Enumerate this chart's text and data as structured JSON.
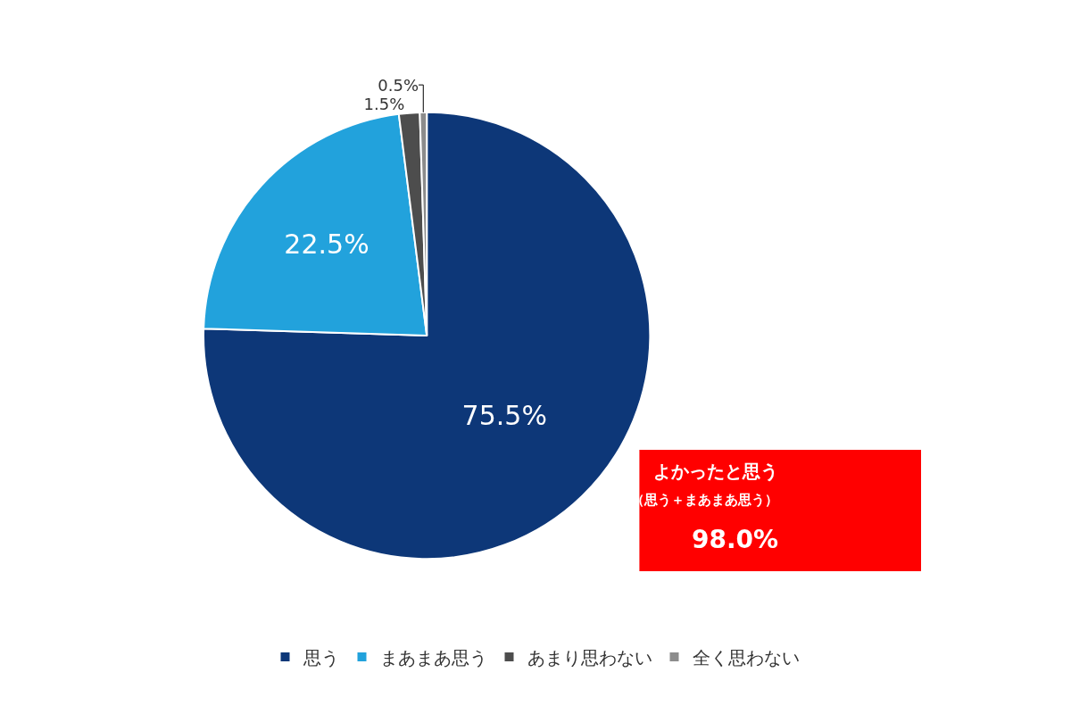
{
  "chart_data": {
    "type": "pie",
    "categories": [
      "思う",
      "まあまあ思う",
      "あまり思わない",
      "全く思わない"
    ],
    "values": [
      75.5,
      22.5,
      1.5,
      0.5
    ],
    "value_labels": [
      "75.5%",
      "22.5%",
      "1.5%",
      "0.5%"
    ],
    "colors": [
      "#0d3778",
      "#22a2dc",
      "#4d4d4d",
      "#8c8c8c"
    ],
    "legend": "bottom",
    "annotations": [
      "よかったと思う",
      "（思う＋まあまあ思う）",
      "98.0%"
    ]
  }
}
